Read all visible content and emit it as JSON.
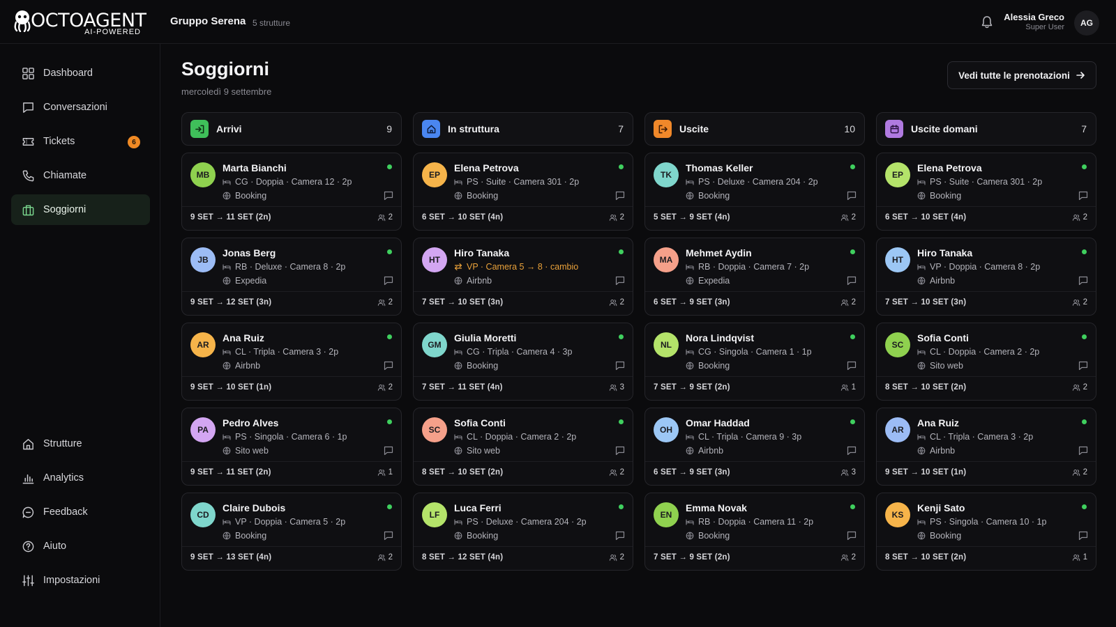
{
  "brand": {
    "name": "OCTOAGENT",
    "tagline": "AI-POWERED"
  },
  "header": {
    "group_name": "Gruppo Serena",
    "group_count": "5 strutture",
    "user_name": "Alessia Greco",
    "user_role": "Super User",
    "user_initials": "AG"
  },
  "sidebar": {
    "top_items": [
      {
        "label": "Dashboard",
        "icon": "grid-icon"
      },
      {
        "label": "Conversazioni",
        "icon": "chat-icon"
      },
      {
        "label": "Tickets",
        "icon": "ticket-icon",
        "badge": "6"
      },
      {
        "label": "Chiamate",
        "icon": "phone-icon"
      },
      {
        "label": "Soggiorni",
        "icon": "suitcase-icon",
        "active": true
      }
    ],
    "bottom_items": [
      {
        "label": "Strutture",
        "icon": "home-icon"
      },
      {
        "label": "Analytics",
        "icon": "bar-chart-icon"
      },
      {
        "label": "Feedback",
        "icon": "feedback-icon"
      },
      {
        "label": "Aiuto",
        "icon": "help-icon"
      },
      {
        "label": "Impostazioni",
        "icon": "sliders-icon"
      }
    ]
  },
  "page": {
    "title": "Soggiorni",
    "date": "mercoledì 9 settembre",
    "all_bookings_label": "Vedi tutte le prenotazioni"
  },
  "colors": {
    "accent_green": "#3fcf5e",
    "arrivals": "#3fbf5a",
    "in_house": "#4a86f0",
    "departures": "#f0882a",
    "departures_tomorrow": "#b07ae0",
    "room_change": "#e9a13a"
  },
  "columns": [
    {
      "title": "Arrivi",
      "count": "9",
      "cards": [
        {
          "initials": "MB",
          "avatar": "#8fd14f",
          "name": "Marta Bianchi",
          "room": "CG · Doppia · Camera 12 · 2p",
          "source": "Booking",
          "dates": "9 SET → 11 SET (2n)",
          "guests": "2"
        },
        {
          "initials": "JB",
          "avatar": "#9cbcf5",
          "name": "Jonas Berg",
          "room": "RB · Deluxe · Camera 8 · 2p",
          "source": "Expedia",
          "dates": "9 SET → 12 SET (3n)",
          "guests": "2"
        },
        {
          "initials": "AR",
          "avatar": "#f6b44a",
          "name": "Ana Ruiz",
          "room": "CL · Tripla · Camera 3 · 2p",
          "source": "Airbnb",
          "dates": "9 SET → 10 SET (1n)",
          "guests": "2"
        },
        {
          "initials": "PA",
          "avatar": "#d3a6f2",
          "name": "Pedro Alves",
          "room": "PS · Singola · Camera 6 · 1p",
          "source": "Sito web",
          "dates": "9 SET → 11 SET (2n)",
          "guests": "1"
        },
        {
          "initials": "CD",
          "avatar": "#7fd6cc",
          "name": "Claire Dubois",
          "room": "VP · Doppia · Camera 5 · 2p",
          "source": "Booking",
          "dates": "9 SET → 13 SET (4n)",
          "guests": "2"
        }
      ]
    },
    {
      "title": "In struttura",
      "count": "7",
      "cards": [
        {
          "initials": "EP",
          "avatar": "#f6b44a",
          "name": "Elena Petrova",
          "room": "PS · Suite · Camera 301 · 2p",
          "source": "Booking",
          "dates": "6 SET → 10 SET (4n)",
          "guests": "2"
        },
        {
          "initials": "HT",
          "avatar": "#d3a6f2",
          "name": "Hiro Tanaka",
          "room": "VP · Camera 5 → 8 · cambio",
          "room_change": true,
          "source": "Airbnb",
          "dates": "7 SET → 10 SET (3n)",
          "guests": "2"
        },
        {
          "initials": "GM",
          "avatar": "#7fd6cc",
          "name": "Giulia Moretti",
          "room": "CG · Tripla · Camera 4 · 3p",
          "source": "Booking",
          "dates": "7 SET → 11 SET (4n)",
          "guests": "3"
        },
        {
          "initials": "SC",
          "avatar": "#f5a08a",
          "name": "Sofia Conti",
          "room": "CL · Doppia · Camera 2 · 2p",
          "source": "Sito web",
          "dates": "8 SET → 10 SET (2n)",
          "guests": "2"
        },
        {
          "initials": "LF",
          "avatar": "#b4e36a",
          "name": "Luca Ferri",
          "room": "PS · Deluxe · Camera 204 · 2p",
          "source": "Booking",
          "dates": "8 SET → 12 SET (4n)",
          "guests": "2"
        }
      ]
    },
    {
      "title": "Uscite",
      "count": "10",
      "cards": [
        {
          "initials": "TK",
          "avatar": "#7fd6cc",
          "name": "Thomas Keller",
          "room": "PS · Deluxe · Camera 204 · 2p",
          "source": "Booking",
          "dates": "5 SET → 9 SET (4n)",
          "guests": "2"
        },
        {
          "initials": "MA",
          "avatar": "#f5a08a",
          "name": "Mehmet Aydin",
          "room": "RB · Doppia · Camera 7 · 2p",
          "source": "Expedia",
          "dates": "6 SET → 9 SET (3n)",
          "guests": "2"
        },
        {
          "initials": "NL",
          "avatar": "#b4e36a",
          "name": "Nora Lindqvist",
          "room": "CG · Singola · Camera 1 · 1p",
          "source": "Booking",
          "dates": "7 SET → 9 SET (2n)",
          "guests": "1"
        },
        {
          "initials": "OH",
          "avatar": "#9cc7f5",
          "name": "Omar Haddad",
          "room": "CL · Tripla · Camera 9 · 3p",
          "source": "Airbnb",
          "dates": "6 SET → 9 SET (3n)",
          "guests": "3"
        },
        {
          "initials": "EN",
          "avatar": "#8fd14f",
          "name": "Emma Novak",
          "room": "RB · Doppia · Camera 11 · 2p",
          "source": "Booking",
          "dates": "7 SET → 9 SET (2n)",
          "guests": "2"
        }
      ]
    },
    {
      "title": "Uscite domani",
      "count": "7",
      "cards": [
        {
          "initials": "EP",
          "avatar": "#b4e36a",
          "name": "Elena Petrova",
          "room": "PS · Suite · Camera 301 · 2p",
          "source": "Booking",
          "dates": "6 SET → 10 SET (4n)",
          "guests": "2"
        },
        {
          "initials": "HT",
          "avatar": "#9cc7f5",
          "name": "Hiro Tanaka",
          "room": "VP · Doppia · Camera 8 · 2p",
          "source": "Airbnb",
          "dates": "7 SET → 10 SET (3n)",
          "guests": "2"
        },
        {
          "initials": "SC",
          "avatar": "#8fd14f",
          "name": "Sofia Conti",
          "room": "CL · Doppia · Camera 2 · 2p",
          "source": "Sito web",
          "dates": "8 SET → 10 SET (2n)",
          "guests": "2"
        },
        {
          "initials": "AR",
          "avatar": "#9cbcf5",
          "name": "Ana Ruiz",
          "room": "CL · Tripla · Camera 3 · 2p",
          "source": "Airbnb",
          "dates": "9 SET → 10 SET (1n)",
          "guests": "2"
        },
        {
          "initials": "KS",
          "avatar": "#f6b44a",
          "name": "Kenji Sato",
          "room": "PS · Singola · Camera 10 · 1p",
          "source": "Booking",
          "dates": "8 SET → 10 SET (2n)",
          "guests": "1"
        }
      ]
    }
  ]
}
